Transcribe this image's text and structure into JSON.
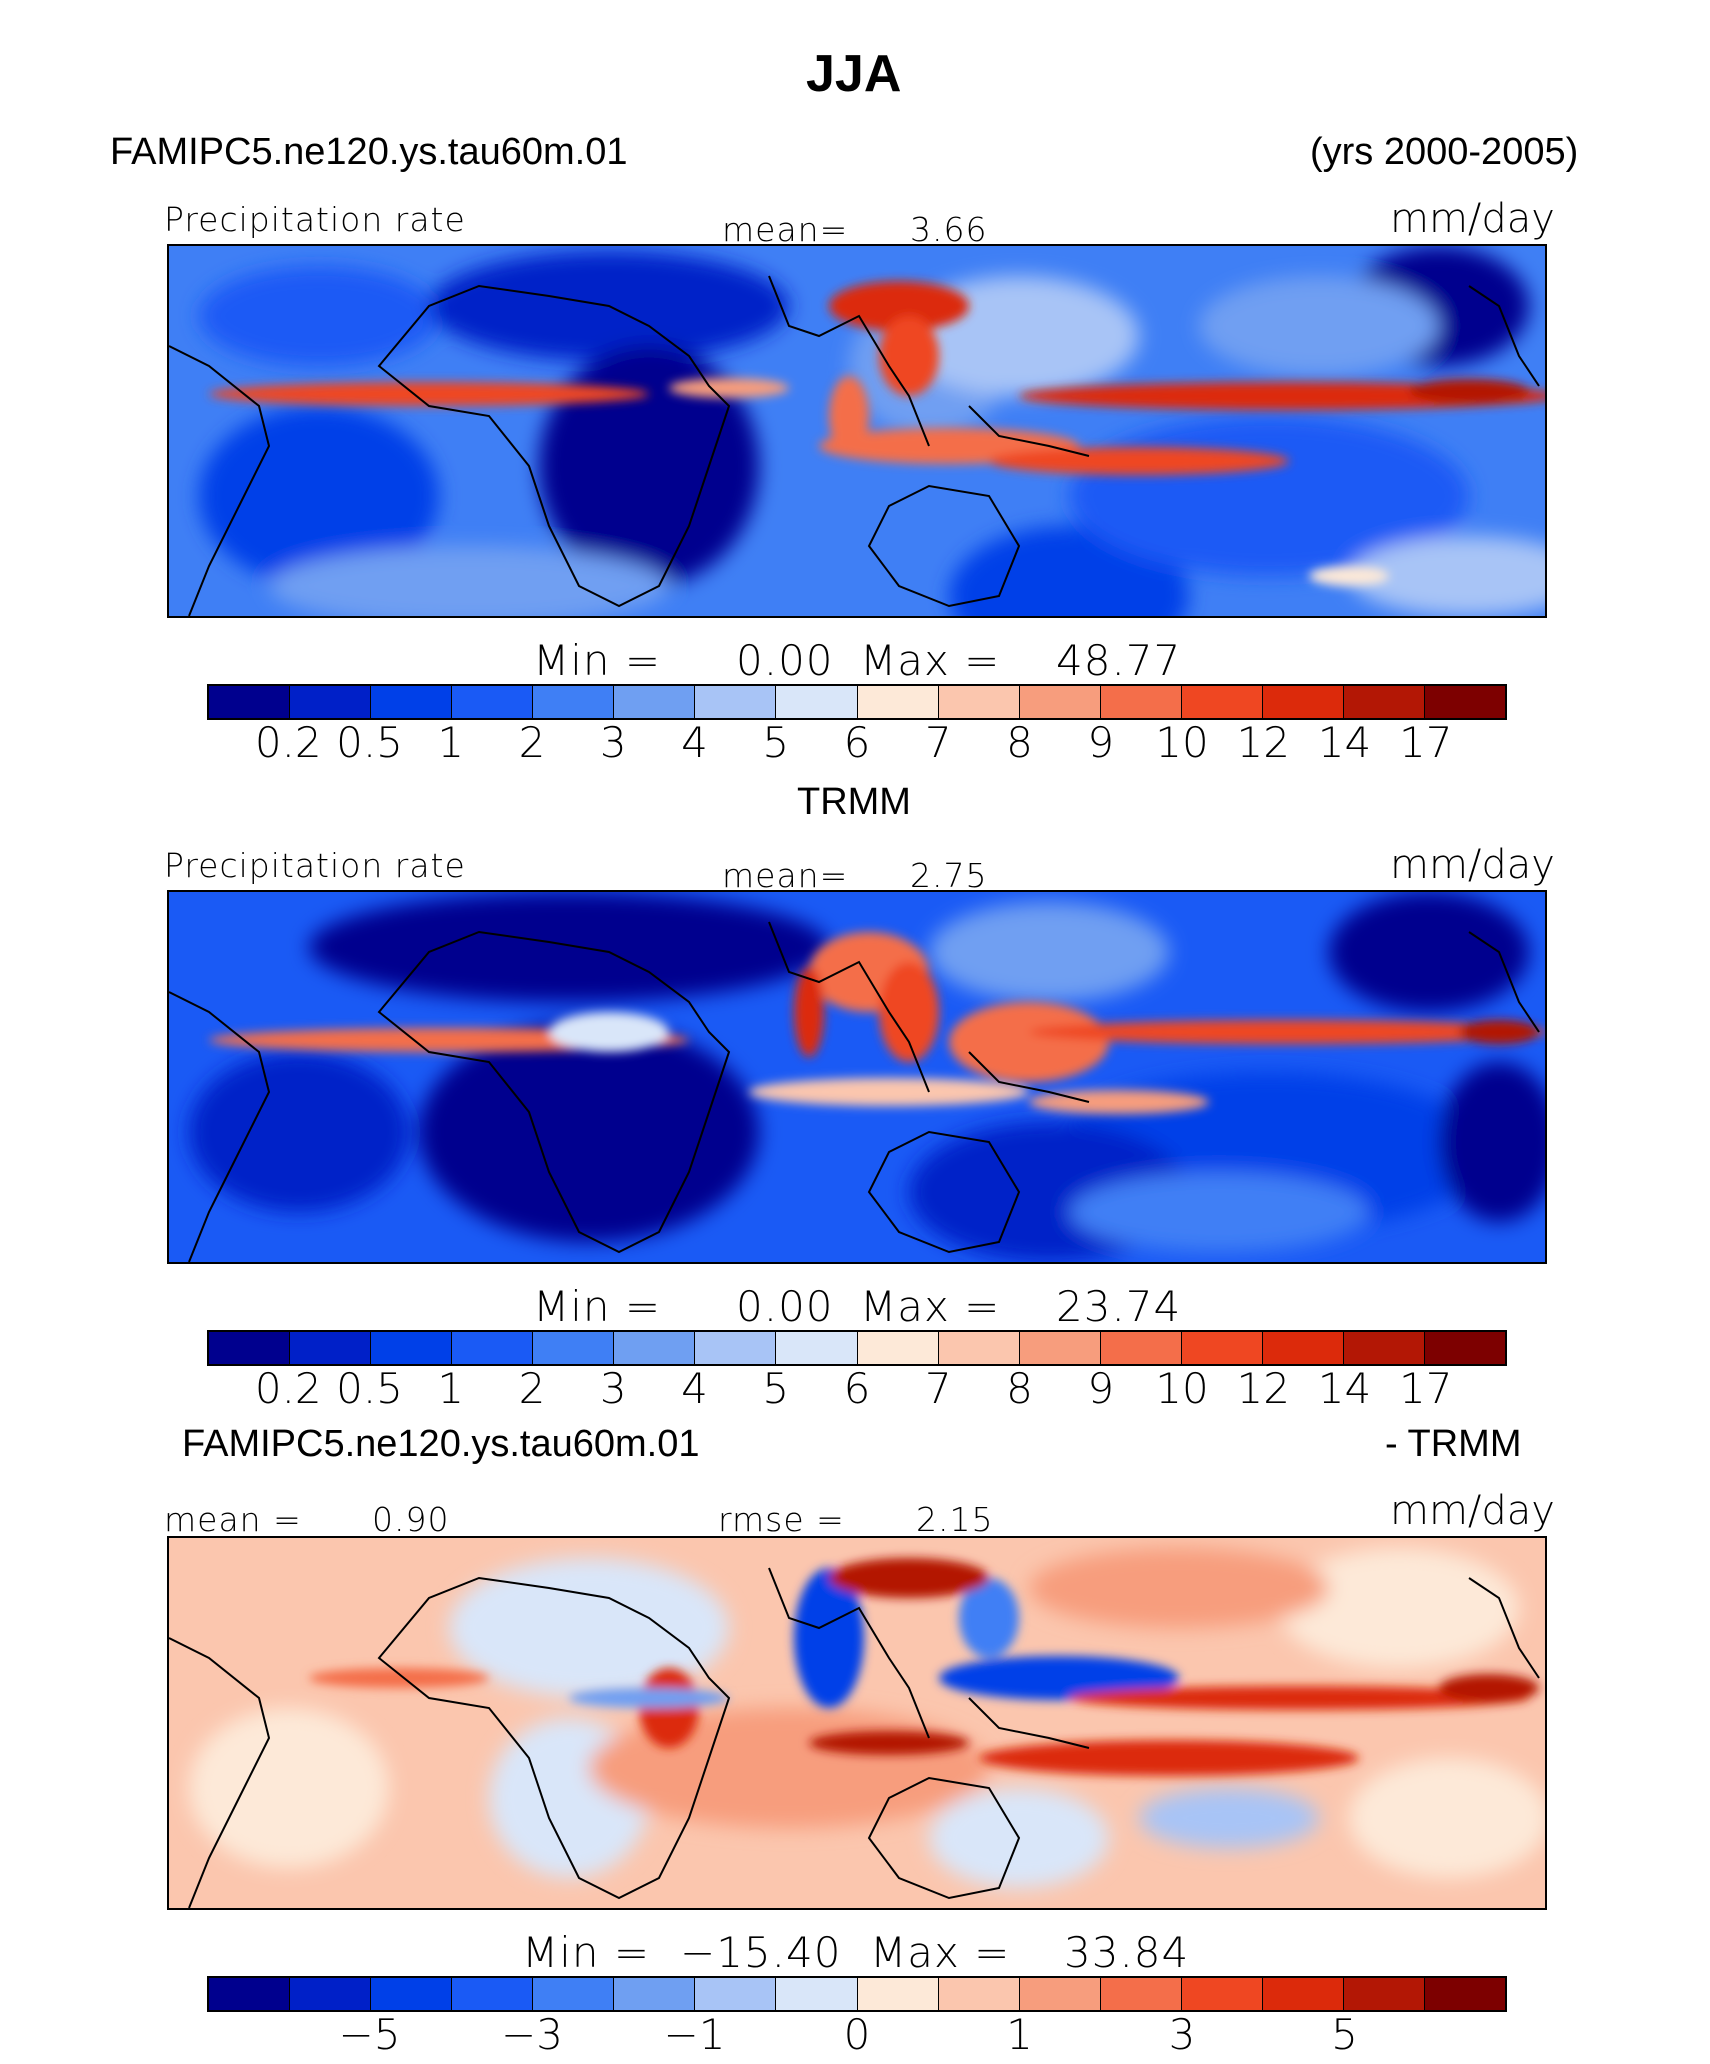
{
  "season_title": "JJA",
  "case_name": "FAMIPC5.ne120.ys.tau60m.01",
  "years": "(yrs 2000-2005)",
  "colors": {
    "levels_scale": [
      "#00008e",
      "#0020c8",
      "#0040e8",
      "#1a5af5",
      "#3f7ff5",
      "#6f9ff2",
      "#a8c4f6",
      "#d9e6f9",
      "#fde9d8",
      "#fbc6ae",
      "#f79d7d",
      "#f46e4a",
      "#ef4722",
      "#dc2a0b",
      "#b31705",
      "#7d0000"
    ]
  },
  "panels": [
    {
      "label_left": "Precipitation rate",
      "mean_label": "mean=",
      "mean_value": "3.66",
      "units": "mm/day",
      "min_text": "Min =",
      "min_value": "0.00",
      "max_text": "Max =",
      "max_value": "48.77",
      "ticks": [
        "0.2",
        "0.5",
        "1",
        "2",
        "3",
        "4",
        "5",
        "6",
        "7",
        "8",
        "9",
        "10",
        "12",
        "14",
        "17"
      ],
      "icon": "precip-map"
    },
    {
      "title": "TRMM",
      "label_left": "Precipitation rate",
      "mean_label": "mean=",
      "mean_value": "2.75",
      "units": "mm/day",
      "min_text": "Min =",
      "min_value": "0.00",
      "max_text": "Max =",
      "max_value": "23.74",
      "ticks": [
        "0.2",
        "0.5",
        "1",
        "2",
        "3",
        "4",
        "5",
        "6",
        "7",
        "8",
        "9",
        "10",
        "12",
        "14",
        "17"
      ],
      "icon": "precip-map"
    },
    {
      "title_left": "FAMIPC5.ne120.ys.tau60m.01",
      "title_right": "- TRMM",
      "label_left": "mean =",
      "mean_value": "0.90",
      "rmse_label": "rmse =",
      "rmse_value": "2.15",
      "units": "mm/day",
      "min_text": "Min =",
      "min_value": "−15.40",
      "max_text": "Max =",
      "max_value": "33.84",
      "ticks": [
        "−5",
        "−3",
        "−1",
        "0",
        "1",
        "3",
        "5"
      ],
      "icon": "difference-map"
    }
  ]
}
